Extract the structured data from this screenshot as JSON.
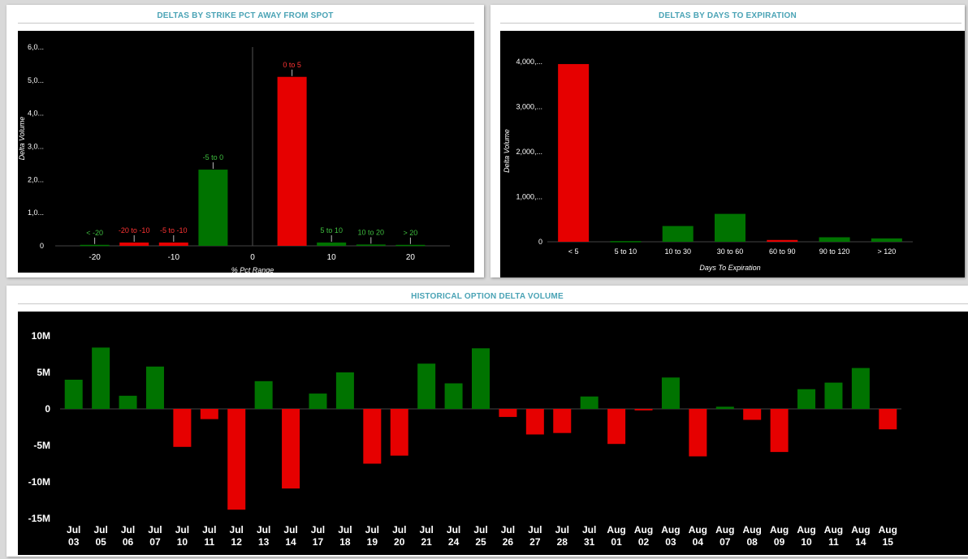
{
  "colors": {
    "pos": "#007300",
    "neg": "#e60000",
    "pos_label": "#3fbf3f",
    "neg_label": "#ff3333",
    "title": "#4aa3b5"
  },
  "panels": {
    "strike": {
      "title": "DELTAS BY STRIKE PCT AWAY FROM SPOT"
    },
    "days": {
      "title": "DELTAS BY DAYS TO EXPIRATION"
    },
    "history": {
      "title": "HISTORICAL OPTION DELTA VOLUME"
    }
  },
  "chart_data": [
    {
      "type": "bar",
      "title": "DELTAS BY STRIKE PCT AWAY FROM SPOT",
      "xlabel": "% Pct Range",
      "ylabel": "Delta Volume",
      "xlim": [
        -25,
        25
      ],
      "ylim": [
        0,
        6000
      ],
      "x_ticks": [
        -20,
        -10,
        0,
        10,
        20
      ],
      "y_ticks": [
        {
          "value": 0,
          "label": "0"
        },
        {
          "value": 1000,
          "label": "1,0..."
        },
        {
          "value": 2000,
          "label": "2,0..."
        },
        {
          "value": 3000,
          "label": "3,0..."
        },
        {
          "value": 4000,
          "label": "4,0..."
        },
        {
          "value": 5000,
          "label": "5,0..."
        },
        {
          "value": 6000,
          "label": "6,0..."
        }
      ],
      "bars": [
        {
          "label": "< -20",
          "x": -20,
          "value": 30,
          "sign": "pos"
        },
        {
          "label": "-20 to -10",
          "x": -15,
          "value": 100,
          "sign": "neg"
        },
        {
          "label": "-5 to -10",
          "x": -10,
          "value": 100,
          "sign": "neg"
        },
        {
          "label": "-5 to 0",
          "x": -5,
          "value": 2300,
          "sign": "pos"
        },
        {
          "label": "0 to 5",
          "x": 5,
          "value": 5100,
          "sign": "neg"
        },
        {
          "label": "5 to 10",
          "x": 10,
          "value": 100,
          "sign": "pos"
        },
        {
          "label": "10 to 20",
          "x": 15,
          "value": 40,
          "sign": "pos"
        },
        {
          "label": "> 20",
          "x": 20,
          "value": 30,
          "sign": "pos"
        }
      ]
    },
    {
      "type": "bar",
      "title": "DELTAS BY DAYS TO EXPIRATION",
      "xlabel": "Days To Expiration",
      "ylabel": "Delta Volume",
      "ylim": [
        0,
        4400
      ],
      "y_ticks": [
        {
          "value": 0,
          "label": "0"
        },
        {
          "value": 1000,
          "label": "1,000,..."
        },
        {
          "value": 2000,
          "label": "2,000,..."
        },
        {
          "value": 3000,
          "label": "3,000,..."
        },
        {
          "value": 4000,
          "label": "4,000,..."
        }
      ],
      "categories": [
        "< 5",
        "5 to 10",
        "10 to 30",
        "30 to 60",
        "60 to 90",
        "90 to 120",
        "> 120"
      ],
      "values": [
        3950,
        15,
        350,
        620,
        40,
        100,
        75
      ],
      "signs": [
        "neg",
        "pos",
        "pos",
        "pos",
        "neg",
        "pos",
        "pos"
      ]
    },
    {
      "type": "bar",
      "title": "HISTORICAL OPTION DELTA VOLUME",
      "ylim": [
        -15,
        12
      ],
      "y_ticks": [
        {
          "value": 10,
          "label": "10M"
        },
        {
          "value": 5,
          "label": "5M"
        },
        {
          "value": 0,
          "label": "0"
        },
        {
          "value": -5,
          "label": "-5M"
        },
        {
          "value": -10,
          "label": "-10M"
        },
        {
          "value": -15,
          "label": "-15M"
        }
      ],
      "categories": [
        [
          "Jul",
          "03"
        ],
        [
          "Jul",
          "05"
        ],
        [
          "Jul",
          "06"
        ],
        [
          "Jul",
          "07"
        ],
        [
          "Jul",
          "10"
        ],
        [
          "Jul",
          "11"
        ],
        [
          "Jul",
          "12"
        ],
        [
          "Jul",
          "13"
        ],
        [
          "Jul",
          "14"
        ],
        [
          "Jul",
          "17"
        ],
        [
          "Jul",
          "18"
        ],
        [
          "Jul",
          "19"
        ],
        [
          "Jul",
          "20"
        ],
        [
          "Jul",
          "21"
        ],
        [
          "Jul",
          "24"
        ],
        [
          "Jul",
          "25"
        ],
        [
          "Jul",
          "26"
        ],
        [
          "Jul",
          "27"
        ],
        [
          "Jul",
          "28"
        ],
        [
          "Jul",
          "31"
        ],
        [
          "Aug",
          "01"
        ],
        [
          "Aug",
          "02"
        ],
        [
          "Aug",
          "03"
        ],
        [
          "Aug",
          "04"
        ],
        [
          "Aug",
          "07"
        ],
        [
          "Aug",
          "08"
        ],
        [
          "Aug",
          "09"
        ],
        [
          "Aug",
          "10"
        ],
        [
          "Aug",
          "11"
        ],
        [
          "Aug",
          "14"
        ],
        [
          "Aug",
          "15"
        ]
      ],
      "values": [
        4.0,
        8.4,
        1.8,
        5.8,
        -5.2,
        -1.4,
        -13.8,
        3.8,
        -10.9,
        2.1,
        5.0,
        -7.5,
        -6.4,
        6.2,
        3.5,
        8.3,
        -1.1,
        -3.5,
        -3.3,
        1.7,
        -4.8,
        -0.2,
        4.3,
        -6.5,
        0.3,
        -1.5,
        -5.9,
        2.7,
        3.6,
        5.6,
        -2.8
      ],
      "unit": "M"
    }
  ]
}
